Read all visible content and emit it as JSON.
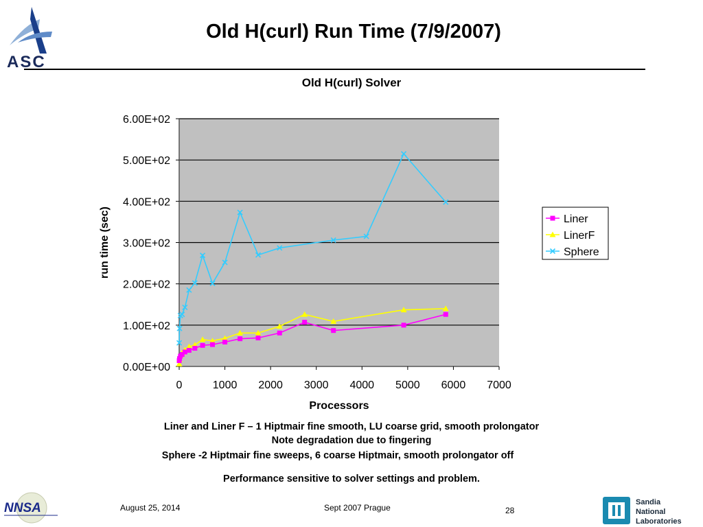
{
  "slide": {
    "title": "Old H(curl) Run Time (7/9/2007)",
    "captions": [
      "Liner and Liner F – 1 Hiptmair fine smooth, LU coarse grid, smooth prolongator",
      "Note degradation due to fingering",
      "Sphere -2 Hiptmair fine sweeps, 6 coarse Hiptmair, smooth prolongator off",
      "Performance sensitive to solver settings and problem."
    ],
    "footer": {
      "date": "August 25, 2014",
      "event": "Sept 2007 Prague",
      "page": "28"
    },
    "logos": {
      "asc_text": "ASC",
      "nnsa_text": "NNSA",
      "sandia_text": [
        "Sandia",
        "National",
        "Laboratories"
      ]
    }
  },
  "colors": {
    "plot_background": "#c0c0c0",
    "gridline": "#000000",
    "liner": "#ff00ff",
    "linerf": "#ffff00",
    "sphere": "#33ccff"
  },
  "chart_data": {
    "type": "line",
    "title": "Old H(curl) Solver",
    "xlabel": "Processors",
    "ylabel": "run time (sec)",
    "xlim": [
      0,
      7000
    ],
    "ylim": [
      0,
      600
    ],
    "xticks": [
      0,
      1000,
      2000,
      3000,
      4000,
      5000,
      6000,
      7000
    ],
    "yticks": [
      0,
      100,
      200,
      300,
      400,
      500,
      600
    ],
    "ytick_labels": [
      "0.00E+00",
      "1.00E+02",
      "2.00E+02",
      "3.00E+02",
      "4.00E+02",
      "5.00E+02",
      "6.00E+02"
    ],
    "grid": "horizontal",
    "legend_position": "right",
    "series": [
      {
        "name": "Liner",
        "color_key": "liner",
        "marker": "square",
        "x": [
          1,
          8,
          27,
          64,
          125,
          216,
          343,
          512,
          729,
          1000,
          1331,
          1728,
          2197,
          2744,
          3375,
          4913,
          5832
        ],
        "y": [
          14,
          19,
          25,
          29,
          35,
          39,
          44,
          51,
          53,
          59,
          67,
          69,
          81,
          107,
          87,
          100,
          126
        ]
      },
      {
        "name": "LinerF",
        "color_key": "linerf",
        "marker": "triangle",
        "x": [
          1,
          8,
          27,
          64,
          125,
          216,
          343,
          512,
          729,
          1000,
          1331,
          1728,
          2197,
          2744,
          3375,
          4913,
          5832
        ],
        "y": [
          6,
          16,
          26,
          33,
          40,
          48,
          52,
          65,
          62,
          68,
          81,
          81,
          97,
          126,
          109,
          137,
          140
        ]
      },
      {
        "name": "Sphere",
        "color_key": "sphere",
        "marker": "x",
        "x": [
          1,
          8,
          27,
          64,
          125,
          216,
          343,
          512,
          729,
          1000,
          1331,
          1728,
          2197,
          3375,
          4096,
          4913,
          5832
        ],
        "y": [
          57,
          92,
          123,
          126,
          143,
          185,
          202,
          269,
          201,
          252,
          373,
          270,
          287,
          306,
          315,
          515,
          398
        ]
      }
    ]
  }
}
